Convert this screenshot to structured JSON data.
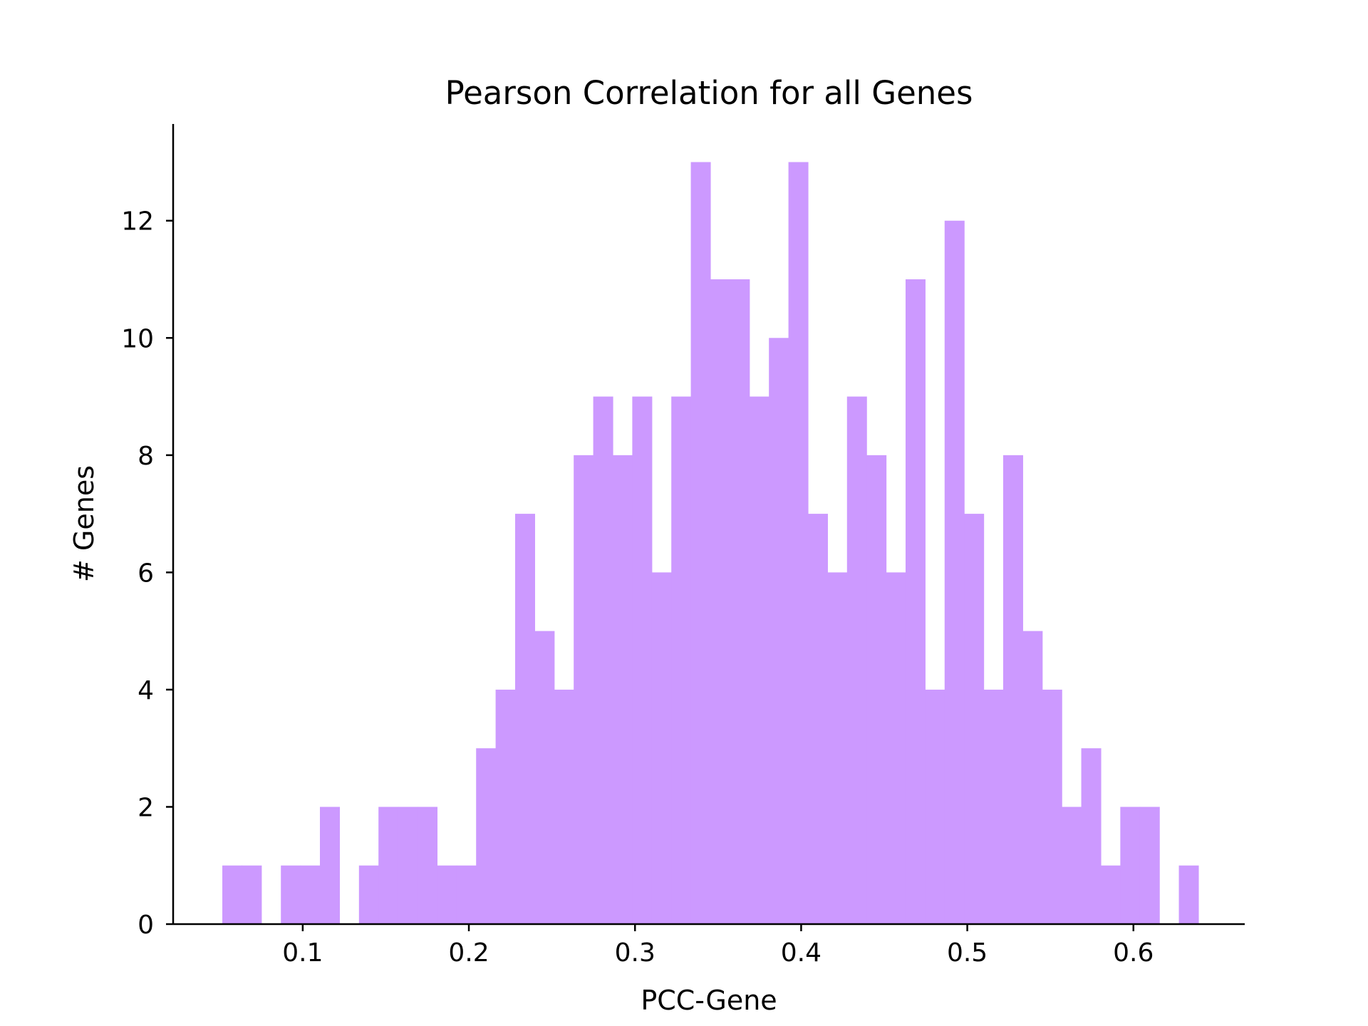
{
  "chart_data": {
    "type": "bar",
    "subtype": "histogram",
    "title": "Pearson Correlation for all Genes",
    "xlabel": "PCC-Gene",
    "ylabel": "# Genes",
    "bar_color": "#cc99ff",
    "xlim": [
      0.022,
      0.667
    ],
    "ylim": [
      0,
      13.65
    ],
    "x_ticks": [
      0.1,
      0.2,
      0.3,
      0.4,
      0.5,
      0.6
    ],
    "x_tick_labels": [
      "0.1",
      "0.2",
      "0.3",
      "0.4",
      "0.5",
      "0.6"
    ],
    "y_ticks": [
      0,
      2,
      4,
      6,
      8,
      10,
      12
    ],
    "y_tick_labels": [
      "0",
      "2",
      "4",
      "6",
      "8",
      "10",
      "12"
    ],
    "grid": false,
    "spines": "left-bottom",
    "bins_start": 0.0516,
    "bin_width": 0.01175,
    "counts": [
      1,
      1,
      0,
      1,
      1,
      2,
      0,
      1,
      2,
      2,
      2,
      1,
      1,
      3,
      4,
      7,
      5,
      4,
      8,
      9,
      8,
      9,
      6,
      9,
      13,
      11,
      11,
      9,
      10,
      13,
      7,
      6,
      9,
      8,
      6,
      11,
      4,
      12,
      7,
      4,
      8,
      5,
      4,
      2,
      3,
      1,
      2,
      2,
      0,
      1
    ]
  }
}
